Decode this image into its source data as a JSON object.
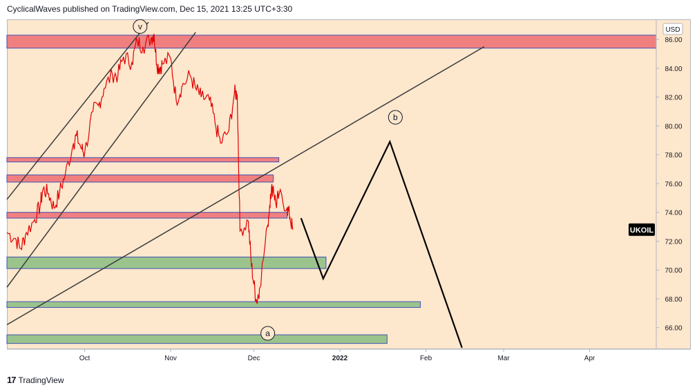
{
  "header": {
    "text": "CyclicalWaves published on TradingView.com, Dec 15, 2021 13:25 UTC+3:30"
  },
  "footer": {
    "brand": "TradingView"
  },
  "chart_data": {
    "type": "line",
    "title": "",
    "symbol": "UKOIL",
    "currency": "USD",
    "last_price": 72.8,
    "colors": {
      "background": "#fde7cd",
      "price": "#e00000",
      "resistance": "#f08080",
      "support": "#9bc48d",
      "projection": "#000000"
    },
    "y_ticks": [
      "66.00",
      "68.00",
      "70.00",
      "72.00",
      "74.00",
      "76.00",
      "78.00",
      "80.00",
      "82.00",
      "84.00",
      "86.00"
    ],
    "ylim": [
      64.5,
      87.4
    ],
    "x_ticks": [
      "Oct",
      "Nov",
      "Dec",
      "2022",
      "Feb",
      "Mar",
      "Apr"
    ],
    "x_tick_dates": [
      "2021-10-01",
      "2021-11-01",
      "2021-12-01",
      "2022-01-01",
      "2022-02-01",
      "2022-03-01",
      "2022-04-01"
    ],
    "x_range": [
      "2021-09-03",
      "2022-04-25"
    ],
    "price_series": {
      "name": "UKOIL",
      "points": [
        [
          "2021-09-03",
          72.6
        ],
        [
          "2021-09-06",
          72.2
        ],
        [
          "2021-09-08",
          71.5
        ],
        [
          "2021-09-10",
          72.6
        ],
        [
          "2021-09-13",
          73.5
        ],
        [
          "2021-09-15",
          74.5
        ],
        [
          "2021-09-16",
          75.6
        ],
        [
          "2021-09-18",
          75.3
        ],
        [
          "2021-09-20",
          74.3
        ],
        [
          "2021-09-22",
          75.4
        ],
        [
          "2021-09-24",
          76.6
        ],
        [
          "2021-09-27",
          78.8
        ],
        [
          "2021-09-28",
          79.3
        ],
        [
          "2021-09-30",
          78.4
        ],
        [
          "2021-10-01",
          78.1
        ],
        [
          "2021-10-04",
          81.0
        ],
        [
          "2021-10-06",
          81.4
        ],
        [
          "2021-10-08",
          82.6
        ],
        [
          "2021-10-11",
          83.6
        ],
        [
          "2021-10-13",
          83.5
        ],
        [
          "2021-10-15",
          84.8
        ],
        [
          "2021-10-18",
          84.4
        ],
        [
          "2021-10-20",
          85.9
        ],
        [
          "2021-10-22",
          85.5
        ],
        [
          "2021-10-25",
          86.1
        ],
        [
          "2021-10-26",
          86.4
        ],
        [
          "2021-10-27",
          84.3
        ],
        [
          "2021-10-28",
          84.0
        ],
        [
          "2021-10-29",
          84.3
        ],
        [
          "2021-11-01",
          84.7
        ],
        [
          "2021-11-03",
          81.8
        ],
        [
          "2021-11-05",
          82.7
        ],
        [
          "2021-11-08",
          83.5
        ],
        [
          "2021-11-10",
          82.6
        ],
        [
          "2021-11-12",
          82.0
        ],
        [
          "2021-11-15",
          81.8
        ],
        [
          "2021-11-17",
          80.2
        ],
        [
          "2021-11-19",
          78.8
        ],
        [
          "2021-11-22",
          79.7
        ],
        [
          "2021-11-24",
          82.3
        ],
        [
          "2021-11-25",
          82.2
        ],
        [
          "2021-11-26",
          72.7
        ],
        [
          "2021-11-29",
          73.4
        ],
        [
          "2021-11-30",
          70.6
        ],
        [
          "2021-12-01",
          69.0
        ],
        [
          "2021-12-02",
          67.8
        ],
        [
          "2021-12-03",
          68.7
        ],
        [
          "2021-12-06",
          73.1
        ],
        [
          "2021-12-07",
          75.3
        ],
        [
          "2021-12-08",
          75.8
        ],
        [
          "2021-12-09",
          74.5
        ],
        [
          "2021-12-10",
          75.2
        ],
        [
          "2021-12-13",
          74.3
        ],
        [
          "2021-12-14",
          73.7
        ],
        [
          "2021-12-15",
          72.8
        ]
      ]
    },
    "projection_path": [
      [
        "2021-12-18",
        73.6
      ],
      [
        "2021-12-26",
        69.4
      ],
      [
        "2022-01-19",
        78.9
      ],
      [
        "2022-02-14",
        64.6
      ]
    ],
    "zones": [
      {
        "kind": "resistance",
        "start": "2021-09-03",
        "end": "2022-04-25",
        "low": 85.4,
        "high": 86.3
      },
      {
        "kind": "resistance",
        "start": "2021-09-03",
        "end": "2021-12-10",
        "low": 77.5,
        "high": 77.8
      },
      {
        "kind": "resistance",
        "start": "2021-09-03",
        "end": "2021-12-08",
        "low": 76.1,
        "high": 76.6
      },
      {
        "kind": "resistance",
        "start": "2021-09-03",
        "end": "2021-12-13",
        "low": 73.6,
        "high": 74.0
      },
      {
        "kind": "support",
        "start": "2021-09-03",
        "end": "2021-12-27",
        "low": 70.1,
        "high": 70.9
      },
      {
        "kind": "support",
        "start": "2021-09-03",
        "end": "2022-01-30",
        "low": 67.4,
        "high": 67.8
      },
      {
        "kind": "support",
        "start": "2021-09-03",
        "end": "2022-01-18",
        "low": 64.9,
        "high": 65.5
      }
    ],
    "trendlines": [
      {
        "from": [
          "2021-09-03",
          74.9
        ],
        "to": [
          "2021-10-24",
          87.2
        ]
      },
      {
        "from": [
          "2021-09-03",
          68.8
        ],
        "to": [
          "2021-11-10",
          86.5
        ]
      },
      {
        "from": [
          "2021-09-03",
          66.2
        ],
        "to": [
          "2022-02-22",
          85.5
        ]
      }
    ],
    "wave_labels": [
      {
        "text": "v",
        "at": [
          "2021-10-21",
          86.9
        ]
      },
      {
        "text": "b",
        "at": [
          "2022-01-21",
          80.6
        ]
      },
      {
        "text": "a",
        "at": [
          "2021-12-06",
          65.6
        ]
      }
    ]
  }
}
